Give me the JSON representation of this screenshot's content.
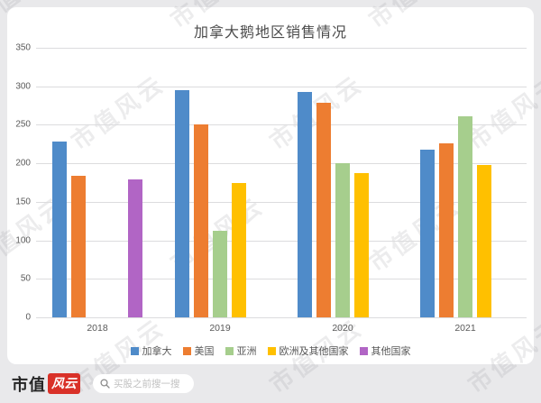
{
  "watermark": {
    "text": "市值风云"
  },
  "chart_data": {
    "type": "bar",
    "title": "加拿大鹅地区销售情况",
    "categories": [
      "2018",
      "2019",
      "2020",
      "2021"
    ],
    "series": [
      {
        "name": "加拿大",
        "color": "#4F8BC9",
        "values": [
          228,
          295,
          293,
          218
        ]
      },
      {
        "name": "美国",
        "color": "#ED7D31",
        "values": [
          184,
          251,
          279,
          226
        ]
      },
      {
        "name": "亚洲",
        "color": "#A6CE8D",
        "values": [
          null,
          112,
          200,
          261
        ]
      },
      {
        "name": "欧洲及其他国家",
        "color": "#FFC000",
        "values": [
          null,
          174,
          187,
          198
        ]
      },
      {
        "name": "其他国家",
        "color": "#B165C5",
        "values": [
          179,
          null,
          null,
          null
        ]
      }
    ],
    "ylim": [
      0,
      350
    ],
    "yticks": [
      350,
      300,
      250,
      200,
      150,
      100,
      50,
      0
    ],
    "grid": true,
    "legend_position": "bottom",
    "colors": {
      "grid": "#dcdcde",
      "text": "#595959"
    }
  },
  "footer": {
    "logo_text_primary": "市值",
    "logo_text_badge": "风云",
    "search_placeholder": "买股之前搜一搜"
  }
}
